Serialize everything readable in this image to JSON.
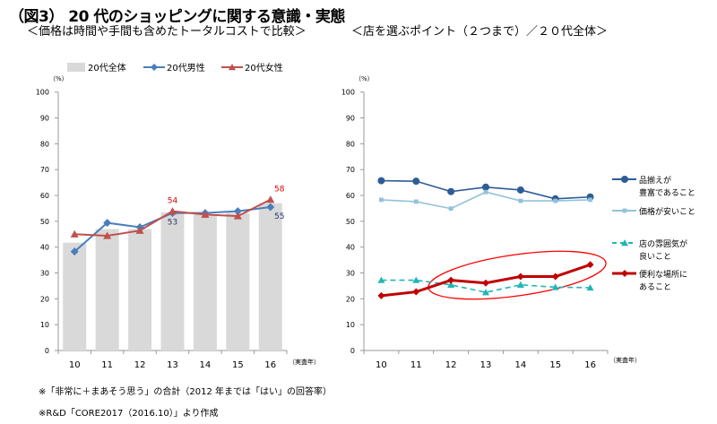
{
  "title": "（図3） 20 代のショッピングに関する意識・実態",
  "footnotes": [
    "※「非常に＋まあそう思う」の合計（2012 年までは「はい」の回答率）",
    "※R&D「CORE2017（2016.10）」より作成"
  ],
  "chart_data": [
    {
      "type": "bar+line",
      "subtitle": "＜価格は時間や手間も含めたトータルコストで比較＞",
      "ylabel": "（%）",
      "xlabel": "（実査年）",
      "ylim": [
        0,
        100
      ],
      "yticks": [
        0,
        10,
        20,
        30,
        40,
        50,
        60,
        70,
        80,
        90,
        100
      ],
      "categories": [
        "10",
        "11",
        "12",
        "13",
        "14",
        "15",
        "16"
      ],
      "legend_position": "top",
      "series": [
        {
          "name": "20代全体",
          "type": "bar",
          "color": "#d9d9d9",
          "values": [
            41.7,
            47.0,
            47.0,
            53.5,
            52.7,
            53.2,
            57.0
          ]
        },
        {
          "name": "20代男性",
          "type": "line",
          "marker": "diamond",
          "color": "#4a7ebb",
          "values": [
            38.3,
            49.4,
            47.7,
            53.2,
            53.2,
            53.9,
            55.5
          ],
          "labels": {
            "3": "53",
            "6": "55"
          },
          "label_color": "#1f3864"
        },
        {
          "name": "20代女性",
          "type": "line",
          "marker": "triangle",
          "color": "#c0504d",
          "values": [
            45.0,
            44.4,
            46.4,
            53.9,
            52.6,
            52.0,
            58.4
          ],
          "labels": {
            "3": "54",
            "6": "58"
          },
          "label_color": "#e00000"
        }
      ]
    },
    {
      "type": "line",
      "subtitle": "＜店を選ぶポイント（２つまで）／２０代全体＞",
      "ylabel": "（%）",
      "xlabel": "（実査年）",
      "ylim": [
        0,
        100
      ],
      "yticks": [
        0,
        10,
        20,
        30,
        40,
        50,
        60,
        70,
        80,
        90,
        100
      ],
      "categories": [
        "10",
        "11",
        "12",
        "13",
        "14",
        "15",
        "16"
      ],
      "legend_position": "right",
      "highlight": "red ellipse around 便利な場所にあること, 2012-2016",
      "series": [
        {
          "name": [
            "品揃えが",
            "豊富であること"
          ],
          "marker": "circle",
          "color": "#2e5c97",
          "dash": false,
          "values": [
            65.7,
            65.5,
            61.5,
            63.2,
            62.1,
            58.7,
            59.4
          ]
        },
        {
          "name": [
            "価格が安いこと"
          ],
          "marker": "square",
          "color": "#93c2d8",
          "dash": false,
          "values": [
            58.3,
            57.6,
            54.9,
            61.3,
            57.9,
            57.9,
            58.3
          ]
        },
        {
          "name": [
            "店の雰囲気が",
            "良いこと"
          ],
          "marker": "triangle",
          "color": "#22b5b5",
          "dash": true,
          "values": [
            27.2,
            27.2,
            25.4,
            22.5,
            25.4,
            24.5,
            24.3
          ]
        },
        {
          "name": [
            "便利な場所に",
            "あること"
          ],
          "marker": "diamond",
          "color": "#c00000",
          "dash": false,
          "thick": true,
          "values": [
            21.2,
            22.7,
            27.2,
            26.1,
            28.6,
            28.6,
            33.2
          ]
        }
      ]
    }
  ]
}
